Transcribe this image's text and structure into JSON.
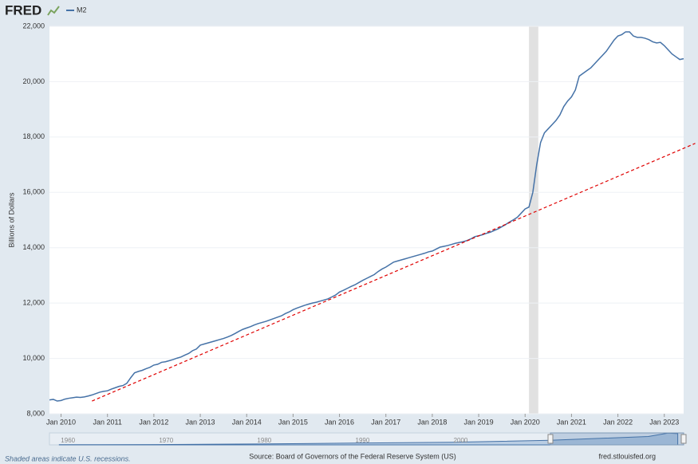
{
  "chart_data": {
    "type": "line",
    "logo": "FRED",
    "y_label": "Billions of Dollars",
    "note": "Shaded areas indicate U.S. recessions.",
    "source": "Source: Board of Governors of the Federal Reserve System (US)",
    "site": "fred.stlouisfed.org",
    "x": [
      "2009-10",
      "2009-11",
      "2009-12",
      "2010-01",
      "2010-02",
      "2010-03",
      "2010-04",
      "2010-05",
      "2010-06",
      "2010-07",
      "2010-08",
      "2010-09",
      "2010-10",
      "2010-11",
      "2010-12",
      "2011-01",
      "2011-02",
      "2011-03",
      "2011-04",
      "2011-05",
      "2011-06",
      "2011-07",
      "2011-08",
      "2011-09",
      "2011-10",
      "2011-11",
      "2011-12",
      "2012-01",
      "2012-02",
      "2012-03",
      "2012-04",
      "2012-05",
      "2012-06",
      "2012-07",
      "2012-08",
      "2012-09",
      "2012-10",
      "2012-11",
      "2012-12",
      "2013-01",
      "2013-02",
      "2013-03",
      "2013-04",
      "2013-05",
      "2013-06",
      "2013-07",
      "2013-08",
      "2013-09",
      "2013-10",
      "2013-11",
      "2013-12",
      "2014-01",
      "2014-02",
      "2014-03",
      "2014-04",
      "2014-05",
      "2014-06",
      "2014-07",
      "2014-08",
      "2014-09",
      "2014-10",
      "2014-11",
      "2014-12",
      "2015-01",
      "2015-02",
      "2015-03",
      "2015-04",
      "2015-05",
      "2015-06",
      "2015-07",
      "2015-08",
      "2015-09",
      "2015-10",
      "2015-11",
      "2015-12",
      "2016-01",
      "2016-02",
      "2016-03",
      "2016-04",
      "2016-05",
      "2016-06",
      "2016-07",
      "2016-08",
      "2016-09",
      "2016-10",
      "2016-11",
      "2016-12",
      "2017-01",
      "2017-02",
      "2017-03",
      "2017-04",
      "2017-05",
      "2017-06",
      "2017-07",
      "2017-08",
      "2017-09",
      "2017-10",
      "2017-11",
      "2017-12",
      "2018-01",
      "2018-02",
      "2018-03",
      "2018-04",
      "2018-05",
      "2018-06",
      "2018-07",
      "2018-08",
      "2018-09",
      "2018-10",
      "2018-11",
      "2018-12",
      "2019-01",
      "2019-02",
      "2019-03",
      "2019-04",
      "2019-05",
      "2019-06",
      "2019-07",
      "2019-08",
      "2019-09",
      "2019-10",
      "2019-11",
      "2019-12",
      "2020-01",
      "2020-02",
      "2020-03",
      "2020-04",
      "2020-05",
      "2020-06",
      "2020-07",
      "2020-08",
      "2020-09",
      "2020-10",
      "2020-11",
      "2020-12",
      "2021-01",
      "2021-02",
      "2021-03",
      "2021-04",
      "2021-05",
      "2021-06",
      "2021-07",
      "2021-08",
      "2021-09",
      "2021-10",
      "2021-11",
      "2021-12",
      "2022-01",
      "2022-02",
      "2022-03",
      "2022-04",
      "2022-05",
      "2022-06",
      "2022-07",
      "2022-08",
      "2022-09",
      "2022-10",
      "2022-11",
      "2022-12",
      "2023-01",
      "2023-02",
      "2023-03",
      "2023-04",
      "2023-05",
      "2023-06"
    ],
    "series": [
      {
        "name": "M2",
        "color": "#4572a7",
        "values": [
          8500,
          8520,
          8460,
          8480,
          8530,
          8560,
          8580,
          8600,
          8590,
          8610,
          8640,
          8680,
          8730,
          8780,
          8810,
          8830,
          8890,
          8940,
          8990,
          9020,
          9100,
          9300,
          9480,
          9530,
          9570,
          9630,
          9680,
          9760,
          9790,
          9860,
          9880,
          9920,
          9960,
          10010,
          10050,
          10120,
          10180,
          10280,
          10340,
          10480,
          10520,
          10560,
          10600,
          10640,
          10680,
          10720,
          10770,
          10830,
          10900,
          10980,
          11050,
          11100,
          11150,
          11210,
          11260,
          11300,
          11340,
          11390,
          11440,
          11490,
          11540,
          11620,
          11680,
          11760,
          11820,
          11870,
          11920,
          11960,
          12000,
          12030,
          12070,
          12110,
          12150,
          12220,
          12290,
          12400,
          12460,
          12530,
          12600,
          12660,
          12740,
          12820,
          12890,
          12960,
          13030,
          13140,
          13230,
          13300,
          13390,
          13480,
          13520,
          13560,
          13600,
          13640,
          13680,
          13720,
          13760,
          13800,
          13850,
          13880,
          13950,
          14020,
          14050,
          14080,
          14120,
          14160,
          14190,
          14220,
          14260,
          14320,
          14400,
          14430,
          14470,
          14520,
          14560,
          14620,
          14680,
          14760,
          14840,
          14930,
          15010,
          15100,
          15250,
          15400,
          15470,
          16000,
          17000,
          17800,
          18150,
          18300,
          18450,
          18600,
          18800,
          19100,
          19300,
          19450,
          19700,
          20200,
          20300,
          20400,
          20500,
          20650,
          20800,
          20950,
          21100,
          21300,
          21500,
          21650,
          21700,
          21800,
          21800,
          21650,
          21600,
          21600,
          21570,
          21520,
          21440,
          21400,
          21420,
          21300,
          21150,
          21000,
          20900,
          20800,
          20830
        ]
      }
    ],
    "trend_line": {
      "x": [
        "2010-09",
        "2023-09"
      ],
      "values": [
        8460,
        17770
      ],
      "color": "#e00000"
    },
    "recessions": [
      [
        "2020-02",
        "2020-04"
      ]
    ],
    "xlim": [
      "2009-10",
      "2023-06"
    ],
    "xticks": [
      {
        "value": "2010-01",
        "label": "Jan 2010"
      },
      {
        "value": "2011-01",
        "label": "Jan 2011"
      },
      {
        "value": "2012-01",
        "label": "Jan 2012"
      },
      {
        "value": "2013-01",
        "label": "Jan 2013"
      },
      {
        "value": "2014-01",
        "label": "Jan 2014"
      },
      {
        "value": "2015-01",
        "label": "Jan 2015"
      },
      {
        "value": "2016-01",
        "label": "Jan 2016"
      },
      {
        "value": "2017-01",
        "label": "Jan 2017"
      },
      {
        "value": "2018-01",
        "label": "Jan 2018"
      },
      {
        "value": "2019-01",
        "label": "Jan 2019"
      },
      {
        "value": "2020-01",
        "label": "Jan 2020"
      },
      {
        "value": "2021-01",
        "label": "Jan 2021"
      },
      {
        "value": "2022-01",
        "label": "Jan 2022"
      },
      {
        "value": "2023-01",
        "label": "Jan 2023"
      }
    ],
    "ylim": [
      8000,
      22000
    ],
    "yticks": [
      {
        "value": 8000,
        "label": "8,000"
      },
      {
        "value": 10000,
        "label": "10,000"
      },
      {
        "value": 12000,
        "label": "12,000"
      },
      {
        "value": 14000,
        "label": "14,000"
      },
      {
        "value": 16000,
        "label": "16,000"
      },
      {
        "value": 18000,
        "label": "18,000"
      },
      {
        "value": 20000,
        "label": "20,000"
      },
      {
        "value": 22000,
        "label": "22,000"
      }
    ],
    "navigator": {
      "x": [
        1960,
        1970,
        1980,
        1990,
        2000,
        2010,
        2020,
        2022,
        2023
      ],
      "values": [
        300,
        600,
        1600,
        3300,
        4700,
        8500,
        15400,
        21600,
        20800
      ],
      "xlim": [
        1959,
        2023.6
      ],
      "ylim": [
        0,
        22000
      ],
      "xticks": [
        1960,
        1970,
        1980,
        1990,
        2000
      ]
    }
  }
}
